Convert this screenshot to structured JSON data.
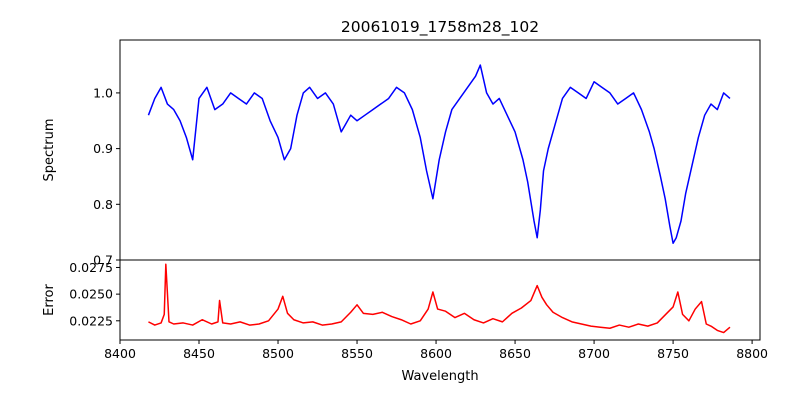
{
  "chart_data": [
    {
      "type": "line",
      "title": "20061019_1758m28_102",
      "xlabel": "",
      "ylabel": "Spectrum",
      "xlim": [
        8400,
        8805
      ],
      "ylim": [
        0.7,
        1.095
      ],
      "xticks": [
        8400,
        8450,
        8500,
        8550,
        8600,
        8650,
        8700,
        8750,
        8800
      ],
      "yticks": [
        0.7,
        0.8,
        0.9,
        1.0
      ],
      "ytick_labels": [
        "0.7",
        "0.8",
        "0.9",
        "1.0"
      ],
      "grid": false,
      "series": [
        {
          "color": "#0000ff",
          "x": [
            8418,
            8422,
            8426,
            8430,
            8434,
            8438,
            8442,
            8446,
            8450,
            8455,
            8460,
            8465,
            8470,
            8475,
            8480,
            8485,
            8490,
            8495,
            8500,
            8504,
            8508,
            8512,
            8516,
            8520,
            8525,
            8530,
            8535,
            8540,
            8542,
            8546,
            8550,
            8555,
            8560,
            8565,
            8570,
            8575,
            8580,
            8585,
            8590,
            8594,
            8598,
            8602,
            8606,
            8610,
            8615,
            8620,
            8625,
            8628,
            8632,
            8636,
            8640,
            8645,
            8650,
            8655,
            8658,
            8662,
            8664,
            8666,
            8668,
            8671,
            8675,
            8680,
            8685,
            8690,
            8695,
            8700,
            8705,
            8710,
            8715,
            8720,
            8725,
            8730,
            8735,
            8738,
            8742,
            8745,
            8748,
            8750,
            8752,
            8755,
            8758,
            8762,
            8766,
            8770,
            8774,
            8778,
            8782,
            8786
          ],
          "values": [
            0.96,
            0.99,
            1.01,
            0.98,
            0.97,
            0.95,
            0.92,
            0.88,
            0.99,
            1.01,
            0.97,
            0.98,
            1.0,
            0.99,
            0.98,
            1.0,
            0.99,
            0.95,
            0.92,
            0.88,
            0.9,
            0.96,
            1.0,
            1.01,
            0.99,
            1.0,
            0.98,
            0.93,
            0.94,
            0.96,
            0.95,
            0.96,
            0.97,
            0.98,
            0.99,
            1.01,
            1.0,
            0.97,
            0.92,
            0.86,
            0.81,
            0.88,
            0.93,
            0.97,
            0.99,
            1.01,
            1.03,
            1.05,
            1.0,
            0.98,
            0.99,
            0.96,
            0.93,
            0.88,
            0.84,
            0.77,
            0.74,
            0.79,
            0.86,
            0.9,
            0.94,
            0.99,
            1.01,
            1.0,
            0.99,
            1.02,
            1.01,
            1.0,
            0.98,
            0.99,
            1.0,
            0.97,
            0.93,
            0.9,
            0.85,
            0.81,
            0.76,
            0.73,
            0.74,
            0.77,
            0.82,
            0.87,
            0.92,
            0.96,
            0.98,
            0.97,
            1.0,
            0.99
          ]
        }
      ]
    },
    {
      "type": "line",
      "title": "",
      "xlabel": "Wavelength",
      "ylabel": "Error",
      "xlim": [
        8400,
        8805
      ],
      "ylim": [
        0.0207,
        0.0282
      ],
      "xticks": [
        8400,
        8450,
        8500,
        8550,
        8600,
        8650,
        8700,
        8750,
        8800
      ],
      "yticks": [
        0.0225,
        0.025,
        0.0275
      ],
      "ytick_labels": [
        "0.0225",
        "0.0250",
        "0.0275"
      ],
      "grid": false,
      "series": [
        {
          "color": "#ff0000",
          "x": [
            8418,
            8422,
            8426,
            8428,
            8429,
            8431,
            8434,
            8440,
            8446,
            8452,
            8458,
            8462,
            8463,
            8465,
            8470,
            8476,
            8482,
            8488,
            8494,
            8500,
            8503,
            8506,
            8510,
            8516,
            8522,
            8528,
            8534,
            8540,
            8546,
            8550,
            8554,
            8560,
            8566,
            8572,
            8578,
            8584,
            8590,
            8595,
            8598,
            8601,
            8606,
            8612,
            8618,
            8624,
            8630,
            8636,
            8642,
            8648,
            8654,
            8660,
            8664,
            8667,
            8670,
            8674,
            8680,
            8686,
            8692,
            8698,
            8704,
            8710,
            8716,
            8722,
            8728,
            8734,
            8740,
            8746,
            8750,
            8753,
            8756,
            8760,
            8764,
            8768,
            8771,
            8774,
            8778,
            8782,
            8786
          ],
          "values": [
            0.0224,
            0.0221,
            0.0223,
            0.0231,
            0.0278,
            0.0224,
            0.0222,
            0.0223,
            0.0221,
            0.0226,
            0.0222,
            0.0224,
            0.0244,
            0.0223,
            0.0222,
            0.0224,
            0.0221,
            0.0222,
            0.0225,
            0.0236,
            0.0248,
            0.0232,
            0.0226,
            0.0223,
            0.0224,
            0.0221,
            0.0222,
            0.0224,
            0.0233,
            0.024,
            0.0232,
            0.0231,
            0.0233,
            0.0229,
            0.0226,
            0.0222,
            0.0225,
            0.0236,
            0.0252,
            0.0236,
            0.0234,
            0.0228,
            0.0232,
            0.0226,
            0.0223,
            0.0227,
            0.0224,
            0.0232,
            0.0237,
            0.0244,
            0.0258,
            0.0247,
            0.024,
            0.0233,
            0.0228,
            0.0224,
            0.0222,
            0.022,
            0.0219,
            0.0218,
            0.0221,
            0.0219,
            0.0222,
            0.022,
            0.0223,
            0.0232,
            0.0238,
            0.0252,
            0.0231,
            0.0225,
            0.0236,
            0.0243,
            0.0222,
            0.022,
            0.0216,
            0.0214,
            0.0219
          ]
        }
      ]
    }
  ]
}
